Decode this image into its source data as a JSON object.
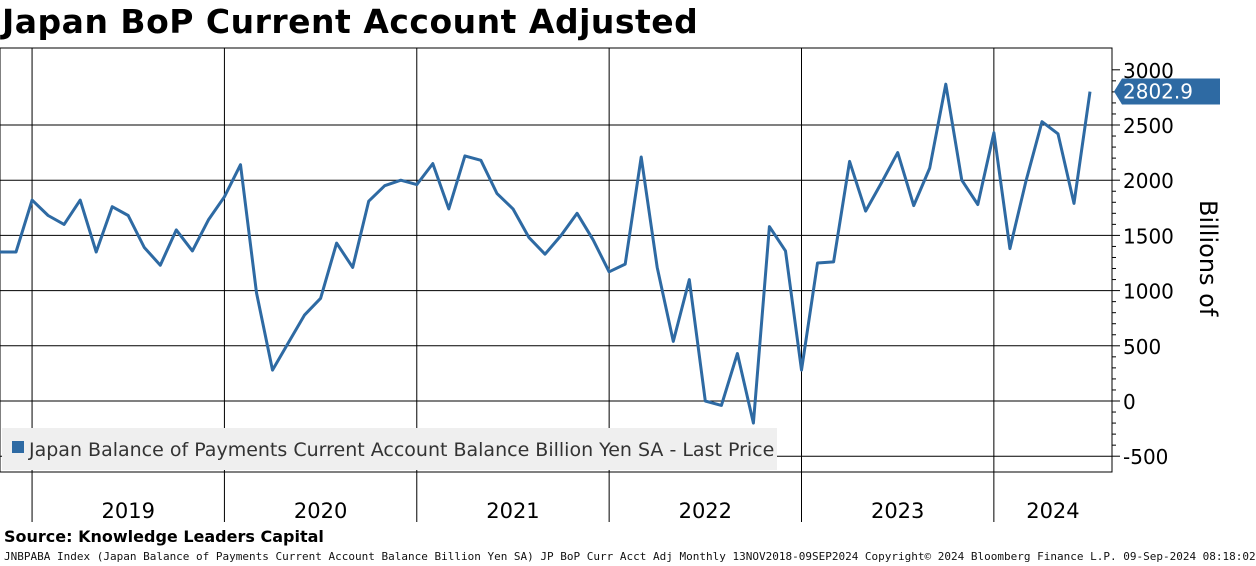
{
  "title": "Japan BoP Current Account Adjusted",
  "source": "Source: Knowledge Leaders Capital",
  "footer": "JNBPABA Index (Japan Balance of Payments Current Account Balance Billion Yen SA) JP BoP Curr Acct Adj  Monthly 13NOV2018-09SEP2024  Copyright© 2024 Bloomberg Finance L.P.  09-Sep-2024 08:18:02",
  "colors": {
    "line": "#2e6aa3",
    "grid": "#000000",
    "legend_bg": "#efefef"
  },
  "chart_data": {
    "type": "line",
    "title": "Japan BoP Current Account Adjusted",
    "ylabel": "Billions of",
    "ylim": [
      -600,
      3100
    ],
    "yticks": [
      -500,
      0,
      500,
      1000,
      1500,
      2000,
      2500,
      3000
    ],
    "ytick_labels": [
      "-500",
      "0",
      "500",
      "1000",
      "1500",
      "2000",
      "2500",
      "3000"
    ],
    "year_labels": [
      "2019",
      "2020",
      "2021",
      "2022",
      "2023",
      "2024"
    ],
    "x_start": "2018-11",
    "grid": true,
    "legend": "Japan Balance of Payments Current Account Balance Billion Yen SA - Last Price",
    "last_price_label": "2802.9",
    "series": [
      {
        "name": "Japan Balance of Payments Current Account Balance Billion Yen SA",
        "values": [
          1350,
          1350,
          1820,
          1680,
          1600,
          1820,
          1350,
          1760,
          1680,
          1390,
          1230,
          1550,
          1360,
          1640,
          1850,
          2140,
          980,
          280,
          530,
          780,
          930,
          1430,
          1210,
          1810,
          1950,
          2000,
          1960,
          2150,
          1740,
          2220,
          2180,
          1880,
          1740,
          1480,
          1330,
          1500,
          1700,
          1460,
          1170,
          1240,
          2210,
          1210,
          540,
          1100,
          0,
          -40,
          430,
          -200,
          1580,
          1360,
          280,
          1250,
          1260,
          2170,
          1720,
          1980,
          2250,
          1770,
          2110,
          2870,
          2000,
          1780,
          2430,
          1380,
          1990,
          2530,
          2420,
          1790,
          2802.9
        ]
      }
    ]
  }
}
